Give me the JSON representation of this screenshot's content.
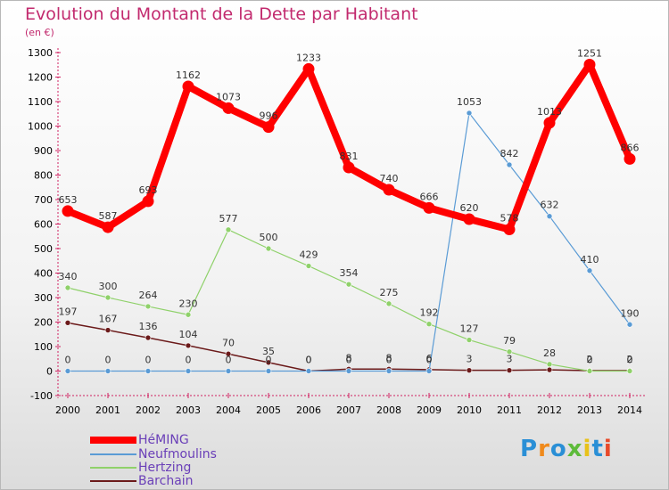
{
  "header": {
    "title": "Evolution du Montant de la Dette par Habitant",
    "subtitle": "(en €)"
  },
  "logo": {
    "text": "Proxiti"
  },
  "chart_data": {
    "type": "line",
    "title": "Evolution du Montant de la Dette par Habitant",
    "ylabel": "(en €)",
    "x": [
      2000,
      2001,
      2002,
      2003,
      2004,
      2005,
      2006,
      2007,
      2008,
      2009,
      2010,
      2011,
      2012,
      2013,
      2014
    ],
    "ylim": [
      -100,
      1300
    ],
    "yticks": [
      -100,
      0,
      100,
      200,
      300,
      400,
      500,
      600,
      700,
      800,
      900,
      1000,
      1100,
      1200,
      1300
    ],
    "grid": false,
    "legend_position": "bottom-left",
    "series": [
      {
        "name": "HéMING",
        "color": "#ff0000",
        "values": [
          653,
          587,
          693,
          1162,
          1073,
          996,
          1233,
          831,
          740,
          666,
          620,
          578,
          1013,
          1251,
          866
        ],
        "labels": [
          "653",
          "587",
          "693",
          "1162",
          "1073",
          "996",
          "1233",
          "831",
          "740",
          "666",
          "620",
          "578",
          "1013",
          "1251",
          "866"
        ]
      },
      {
        "name": "Neufmoulins",
        "color": "#5a9bd5",
        "values": [
          0,
          0,
          0,
          0,
          0,
          0,
          0,
          0,
          0,
          0,
          1053,
          842,
          632,
          410,
          190
        ],
        "labels": [
          "0",
          "0",
          "0",
          "0",
          "0",
          "0",
          "0",
          "0",
          "0",
          "0",
          "1053",
          "842",
          "632",
          "410",
          "190"
        ]
      },
      {
        "name": "Hertzing",
        "color": "#8fd16a",
        "values": [
          340,
          300,
          264,
          230,
          577,
          500,
          429,
          354,
          275,
          192,
          127,
          79,
          28,
          0,
          0
        ],
        "labels": [
          "340",
          "300",
          "264",
          "230",
          "577",
          "500",
          "429",
          "354",
          "275",
          "192",
          "127",
          "79",
          "28",
          "0",
          "0"
        ]
      },
      {
        "name": "Barchain",
        "color": "#6b1a1a",
        "values": [
          197,
          167,
          136,
          104,
          70,
          35,
          0,
          8,
          8,
          6,
          3,
          3,
          5,
          2,
          2
        ],
        "labels": [
          "197",
          "167",
          "136",
          "104",
          "70",
          "35",
          "0",
          "8",
          "8",
          "6",
          "3",
          "3",
          "",
          "2",
          "2"
        ]
      }
    ]
  }
}
